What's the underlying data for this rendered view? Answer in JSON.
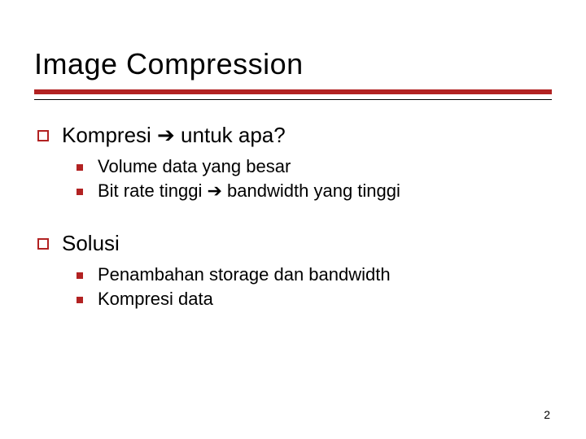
{
  "slide": {
    "title": "Image Compression",
    "sections": [
      {
        "heading": "Kompresi ➔ untuk apa?",
        "items": [
          "Volume data yang besar",
          "Bit rate tinggi ➔ bandwidth yang tinggi"
        ]
      },
      {
        "heading": "Solusi",
        "items": [
          "Penambahan storage dan bandwidth",
          "Kompresi data"
        ]
      }
    ],
    "page_number": "2"
  },
  "style": {
    "accent_color": "#b22222",
    "background_color": "#ffffff",
    "text_color": "#000000",
    "title_fontsize": 36,
    "level1_fontsize": 26,
    "level2_fontsize": 22,
    "font_family": "Verdana",
    "underline_thick_height": 6,
    "underline_thin_height": 1,
    "bullet_outer_size": 14,
    "bullet_outer_border": 2,
    "bullet_inner_size": 8,
    "slide_width": 720,
    "slide_height": 540
  }
}
